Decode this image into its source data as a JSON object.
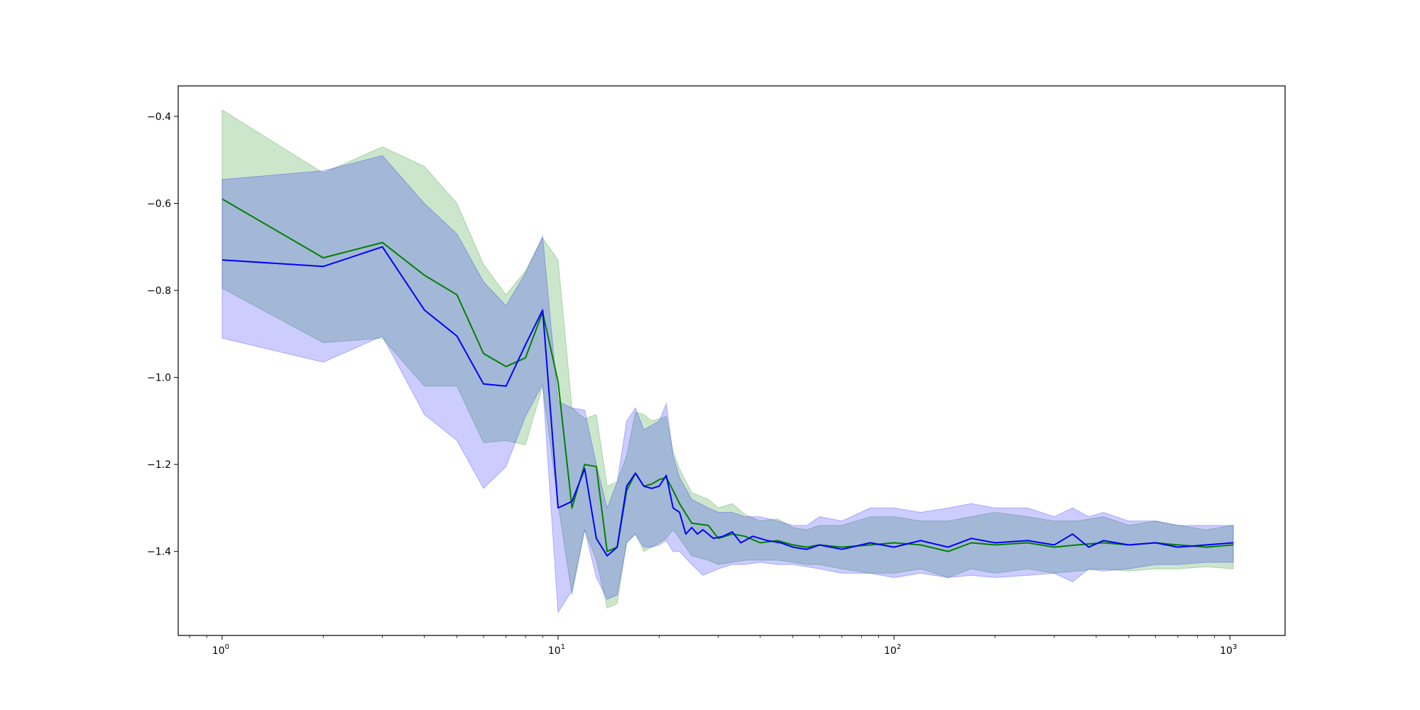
{
  "chart_data": {
    "type": "line",
    "title": "",
    "xlabel": "",
    "ylabel": "",
    "xscale": "log",
    "xlim": [
      0.74,
      1460
    ],
    "ylim": [
      -1.593,
      -0.33
    ],
    "grid": false,
    "legend": "none",
    "x_ticks": [
      {
        "value": 1,
        "base": "10",
        "exp": "0"
      },
      {
        "value": 10,
        "base": "10",
        "exp": "1"
      },
      {
        "value": 100,
        "base": "10",
        "exp": "2"
      },
      {
        "value": 1000,
        "base": "10",
        "exp": "3"
      }
    ],
    "y_ticks": [
      {
        "value": -0.4,
        "label": "−0.4"
      },
      {
        "value": -0.6,
        "label": "−0.6"
      },
      {
        "value": -0.8,
        "label": "−0.8"
      },
      {
        "value": -1.0,
        "label": "−1.0"
      },
      {
        "value": -1.2,
        "label": "−1.2"
      },
      {
        "value": -1.4,
        "label": "−1.4"
      }
    ],
    "series": [
      {
        "color": "#008000",
        "band_color": "#008000",
        "values": [
          [
            1,
            -0.59
          ],
          [
            2,
            -0.725
          ],
          [
            3,
            -0.69
          ],
          [
            4,
            -0.765
          ],
          [
            5,
            -0.81
          ],
          [
            6,
            -0.945
          ],
          [
            7,
            -0.975
          ],
          [
            8,
            -0.955
          ],
          [
            9,
            -0.85
          ],
          [
            10,
            -1.01
          ],
          [
            11,
            -1.3
          ],
          [
            12,
            -1.2
          ],
          [
            13,
            -1.205
          ],
          [
            14,
            -1.4
          ],
          [
            15,
            -1.39
          ],
          [
            16,
            -1.26
          ],
          [
            17,
            -1.22
          ],
          [
            18,
            -1.25
          ],
          [
            19,
            -1.245
          ],
          [
            20,
            -1.235
          ],
          [
            21,
            -1.23
          ],
          [
            22,
            -1.26
          ],
          [
            23,
            -1.29
          ],
          [
            25,
            -1.335
          ],
          [
            28,
            -1.34
          ],
          [
            30,
            -1.37
          ],
          [
            33,
            -1.36
          ],
          [
            36,
            -1.365
          ],
          [
            40,
            -1.38
          ],
          [
            45,
            -1.375
          ],
          [
            50,
            -1.385
          ],
          [
            55,
            -1.39
          ],
          [
            60,
            -1.385
          ],
          [
            70,
            -1.39
          ],
          [
            85,
            -1.385
          ],
          [
            100,
            -1.38
          ],
          [
            120,
            -1.385
          ],
          [
            145,
            -1.4
          ],
          [
            170,
            -1.38
          ],
          [
            200,
            -1.385
          ],
          [
            250,
            -1.38
          ],
          [
            300,
            -1.39
          ],
          [
            350,
            -1.385
          ],
          [
            420,
            -1.38
          ],
          [
            500,
            -1.385
          ],
          [
            600,
            -1.38
          ],
          [
            700,
            -1.385
          ],
          [
            850,
            -1.39
          ],
          [
            1024,
            -1.385
          ]
        ],
        "upper": [
          [
            1,
            -0.385
          ],
          [
            2,
            -0.53
          ],
          [
            3,
            -0.47
          ],
          [
            4,
            -0.515
          ],
          [
            5,
            -0.6
          ],
          [
            6,
            -0.74
          ],
          [
            7,
            -0.81
          ],
          [
            8,
            -0.755
          ],
          [
            9,
            -0.68
          ],
          [
            10,
            -0.73
          ],
          [
            11,
            -1.07
          ],
          [
            12,
            -1.095
          ],
          [
            13,
            -1.085
          ],
          [
            14,
            -1.25
          ],
          [
            15,
            -1.24
          ],
          [
            16,
            -1.18
          ],
          [
            17,
            -1.08
          ],
          [
            18,
            -1.085
          ],
          [
            19,
            -1.1
          ],
          [
            20,
            -1.095
          ],
          [
            21,
            -1.09
          ],
          [
            22,
            -1.17
          ],
          [
            23,
            -1.21
          ],
          [
            25,
            -1.265
          ],
          [
            28,
            -1.28
          ],
          [
            30,
            -1.3
          ],
          [
            33,
            -1.29
          ],
          [
            36,
            -1.315
          ],
          [
            40,
            -1.33
          ],
          [
            45,
            -1.325
          ],
          [
            50,
            -1.345
          ],
          [
            55,
            -1.35
          ],
          [
            60,
            -1.34
          ],
          [
            70,
            -1.34
          ],
          [
            85,
            -1.32
          ],
          [
            100,
            -1.32
          ],
          [
            120,
            -1.33
          ],
          [
            145,
            -1.33
          ],
          [
            170,
            -1.32
          ],
          [
            200,
            -1.31
          ],
          [
            250,
            -1.32
          ],
          [
            300,
            -1.33
          ],
          [
            350,
            -1.33
          ],
          [
            420,
            -1.32
          ],
          [
            500,
            -1.34
          ],
          [
            600,
            -1.33
          ],
          [
            700,
            -1.34
          ],
          [
            850,
            -1.35
          ],
          [
            1024,
            -1.34
          ]
        ],
        "lower": [
          [
            1,
            -0.795
          ],
          [
            2,
            -0.92
          ],
          [
            3,
            -0.91
          ],
          [
            4,
            -1.02
          ],
          [
            5,
            -1.02
          ],
          [
            6,
            -1.15
          ],
          [
            7,
            -1.145
          ],
          [
            8,
            -1.155
          ],
          [
            9,
            -1.02
          ],
          [
            10,
            -1.29
          ],
          [
            11,
            -1.5
          ],
          [
            12,
            -1.35
          ],
          [
            13,
            -1.42
          ],
          [
            14,
            -1.53
          ],
          [
            15,
            -1.52
          ],
          [
            16,
            -1.38
          ],
          [
            17,
            -1.36
          ],
          [
            18,
            -1.4
          ],
          [
            19,
            -1.39
          ],
          [
            20,
            -1.38
          ],
          [
            21,
            -1.37
          ],
          [
            22,
            -1.35
          ],
          [
            23,
            -1.37
          ],
          [
            25,
            -1.41
          ],
          [
            28,
            -1.42
          ],
          [
            30,
            -1.43
          ],
          [
            33,
            -1.425
          ],
          [
            36,
            -1.42
          ],
          [
            40,
            -1.42
          ],
          [
            45,
            -1.42
          ],
          [
            50,
            -1.425
          ],
          [
            55,
            -1.43
          ],
          [
            60,
            -1.43
          ],
          [
            70,
            -1.44
          ],
          [
            85,
            -1.45
          ],
          [
            100,
            -1.45
          ],
          [
            120,
            -1.44
          ],
          [
            145,
            -1.46
          ],
          [
            170,
            -1.44
          ],
          [
            200,
            -1.45
          ],
          [
            250,
            -1.44
          ],
          [
            300,
            -1.45
          ],
          [
            350,
            -1.445
          ],
          [
            420,
            -1.44
          ],
          [
            500,
            -1.445
          ],
          [
            600,
            -1.44
          ],
          [
            700,
            -1.44
          ],
          [
            850,
            -1.435
          ],
          [
            1024,
            -1.44
          ]
        ]
      },
      {
        "color": "#0000ff",
        "band_color": "#0000ff",
        "values": [
          [
            1,
            -0.73
          ],
          [
            2,
            -0.745
          ],
          [
            3,
            -0.7
          ],
          [
            4,
            -0.845
          ],
          [
            5,
            -0.905
          ],
          [
            6,
            -1.015
          ],
          [
            7,
            -1.02
          ],
          [
            8,
            -0.925
          ],
          [
            9,
            -0.845
          ],
          [
            10,
            -1.3
          ],
          [
            11,
            -1.285
          ],
          [
            12,
            -1.21
          ],
          [
            13,
            -1.37
          ],
          [
            14,
            -1.41
          ],
          [
            15,
            -1.39
          ],
          [
            16,
            -1.25
          ],
          [
            17,
            -1.22
          ],
          [
            18,
            -1.25
          ],
          [
            19,
            -1.255
          ],
          [
            20,
            -1.25
          ],
          [
            21,
            -1.225
          ],
          [
            22,
            -1.3
          ],
          [
            23,
            -1.31
          ],
          [
            24,
            -1.36
          ],
          [
            25,
            -1.345
          ],
          [
            26,
            -1.36
          ],
          [
            27,
            -1.35
          ],
          [
            29,
            -1.37
          ],
          [
            31,
            -1.365
          ],
          [
            33,
            -1.355
          ],
          [
            35,
            -1.38
          ],
          [
            38,
            -1.365
          ],
          [
            42,
            -1.375
          ],
          [
            46,
            -1.38
          ],
          [
            50,
            -1.39
          ],
          [
            55,
            -1.395
          ],
          [
            60,
            -1.385
          ],
          [
            70,
            -1.395
          ],
          [
            85,
            -1.38
          ],
          [
            100,
            -1.39
          ],
          [
            120,
            -1.375
          ],
          [
            145,
            -1.39
          ],
          [
            170,
            -1.37
          ],
          [
            200,
            -1.38
          ],
          [
            250,
            -1.375
          ],
          [
            300,
            -1.385
          ],
          [
            340,
            -1.36
          ],
          [
            380,
            -1.39
          ],
          [
            420,
            -1.375
          ],
          [
            500,
            -1.385
          ],
          [
            600,
            -1.38
          ],
          [
            700,
            -1.39
          ],
          [
            850,
            -1.385
          ],
          [
            1024,
            -1.38
          ]
        ],
        "upper": [
          [
            1,
            -0.545
          ],
          [
            2,
            -0.525
          ],
          [
            3,
            -0.49
          ],
          [
            4,
            -0.6
          ],
          [
            5,
            -0.67
          ],
          [
            6,
            -0.78
          ],
          [
            7,
            -0.835
          ],
          [
            8,
            -0.76
          ],
          [
            9,
            -0.675
          ],
          [
            10,
            -1.055
          ],
          [
            11,
            -1.07
          ],
          [
            12,
            -1.075
          ],
          [
            13,
            -1.2
          ],
          [
            14,
            -1.3
          ],
          [
            15,
            -1.24
          ],
          [
            16,
            -1.1
          ],
          [
            17,
            -1.07
          ],
          [
            18,
            -1.12
          ],
          [
            19,
            -1.11
          ],
          [
            20,
            -1.1
          ],
          [
            21,
            -1.06
          ],
          [
            22,
            -1.18
          ],
          [
            23,
            -1.23
          ],
          [
            25,
            -1.28
          ],
          [
            28,
            -1.3
          ],
          [
            30,
            -1.31
          ],
          [
            33,
            -1.31
          ],
          [
            36,
            -1.32
          ],
          [
            40,
            -1.32
          ],
          [
            45,
            -1.33
          ],
          [
            50,
            -1.34
          ],
          [
            55,
            -1.34
          ],
          [
            60,
            -1.32
          ],
          [
            70,
            -1.33
          ],
          [
            85,
            -1.3
          ],
          [
            100,
            -1.3
          ],
          [
            120,
            -1.31
          ],
          [
            145,
            -1.3
          ],
          [
            170,
            -1.29
          ],
          [
            200,
            -1.3
          ],
          [
            250,
            -1.3
          ],
          [
            300,
            -1.32
          ],
          [
            340,
            -1.3
          ],
          [
            380,
            -1.32
          ],
          [
            420,
            -1.31
          ],
          [
            500,
            -1.33
          ],
          [
            600,
            -1.33
          ],
          [
            700,
            -1.34
          ],
          [
            850,
            -1.34
          ],
          [
            1024,
            -1.34
          ]
        ],
        "lower": [
          [
            1,
            -0.91
          ],
          [
            2,
            -0.965
          ],
          [
            3,
            -0.905
          ],
          [
            4,
            -1.085
          ],
          [
            5,
            -1.145
          ],
          [
            6,
            -1.255
          ],
          [
            7,
            -1.205
          ],
          [
            8,
            -1.09
          ],
          [
            9,
            -1.015
          ],
          [
            10,
            -1.54
          ],
          [
            11,
            -1.49
          ],
          [
            12,
            -1.35
          ],
          [
            13,
            -1.46
          ],
          [
            14,
            -1.51
          ],
          [
            15,
            -1.5
          ],
          [
            16,
            -1.38
          ],
          [
            17,
            -1.36
          ],
          [
            18,
            -1.39
          ],
          [
            19,
            -1.39
          ],
          [
            20,
            -1.385
          ],
          [
            21,
            -1.375
          ],
          [
            22,
            -1.4
          ],
          [
            23,
            -1.4
          ],
          [
            25,
            -1.43
          ],
          [
            27,
            -1.455
          ],
          [
            30,
            -1.44
          ],
          [
            33,
            -1.43
          ],
          [
            36,
            -1.43
          ],
          [
            40,
            -1.425
          ],
          [
            45,
            -1.43
          ],
          [
            50,
            -1.43
          ],
          [
            55,
            -1.435
          ],
          [
            60,
            -1.44
          ],
          [
            70,
            -1.45
          ],
          [
            85,
            -1.45
          ],
          [
            100,
            -1.46
          ],
          [
            120,
            -1.45
          ],
          [
            145,
            -1.46
          ],
          [
            170,
            -1.455
          ],
          [
            200,
            -1.46
          ],
          [
            250,
            -1.455
          ],
          [
            300,
            -1.45
          ],
          [
            340,
            -1.47
          ],
          [
            380,
            -1.44
          ],
          [
            420,
            -1.445
          ],
          [
            500,
            -1.44
          ],
          [
            600,
            -1.43
          ],
          [
            700,
            -1.43
          ],
          [
            850,
            -1.425
          ],
          [
            1024,
            -1.425
          ]
        ]
      }
    ]
  }
}
